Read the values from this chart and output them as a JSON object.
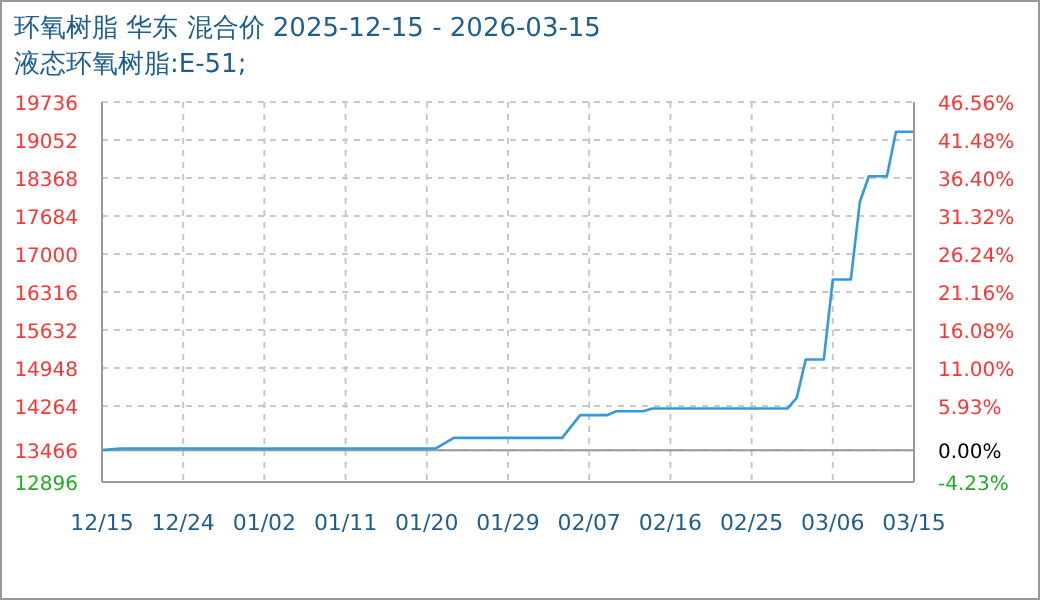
{
  "chart_data": {
    "type": "line",
    "title": "环氧树脂 华东 混合价 2025-12-15 - 2026-03-15",
    "subtitle": "液态环氧树脂:E-51;",
    "x": [
      "2025-12-15",
      "2025-12-17",
      "2026-01-21",
      "2026-01-23",
      "2026-02-04",
      "2026-02-06",
      "2026-02-09",
      "2026-02-10",
      "2026-02-13",
      "2026-02-14",
      "2026-03-01",
      "2026-03-02",
      "2026-03-03",
      "2026-03-05",
      "2026-03-06",
      "2026-03-08",
      "2026-03-09",
      "2026-03-10",
      "2026-03-12",
      "2026-03-13",
      "2026-03-15"
    ],
    "series": [
      {
        "color": "#3399dd",
        "values": [
          13470,
          13500,
          13500,
          13690,
          13690,
          14100,
          14100,
          14170,
          14170,
          14220,
          14220,
          14410,
          15100,
          15100,
          16540,
          16540,
          17940,
          18400,
          18400,
          19200,
          19200
        ]
      }
    ],
    "xlim": [
      "2025-12-15",
      "2026-03-15"
    ],
    "xticks": [
      {
        "value": "2025-12-15",
        "label": "12/15"
      },
      {
        "value": "2025-12-24",
        "label": "12/24"
      },
      {
        "value": "2026-01-02",
        "label": "01/02"
      },
      {
        "value": "2026-01-11",
        "label": "01/11"
      },
      {
        "value": "2026-01-20",
        "label": "01/20"
      },
      {
        "value": "2026-01-29",
        "label": "01/29"
      },
      {
        "value": "2026-02-07",
        "label": "02/07"
      },
      {
        "value": "2026-02-16",
        "label": "02/16"
      },
      {
        "value": "2026-02-25",
        "label": "02/25"
      },
      {
        "value": "2026-03-06",
        "label": "03/06"
      },
      {
        "value": "2026-03-15",
        "label": "03/15"
      }
    ],
    "ylim": [
      12896,
      19736
    ],
    "yticks": [
      12896,
      13466,
      14264,
      14948,
      15632,
      16316,
      17000,
      17684,
      18368,
      19052,
      19736
    ],
    "y2lim": [
      -4.23,
      46.56
    ],
    "y2ticks": [
      {
        "value": -4.23,
        "label": "-4.23%"
      },
      {
        "value": 0,
        "label": "0.00%"
      },
      {
        "value": 5.93,
        "label": "5.93%"
      },
      {
        "value": 11,
        "label": "11.00%"
      },
      {
        "value": 16.08,
        "label": "16.08%"
      },
      {
        "value": 21.16,
        "label": "21.16%"
      },
      {
        "value": 26.24,
        "label": "26.24%"
      },
      {
        "value": 31.32,
        "label": "31.32%"
      },
      {
        "value": 36.4,
        "label": "36.40%"
      },
      {
        "value": 41.48,
        "label": "41.48%"
      },
      {
        "value": 46.56,
        "label": "46.56%"
      }
    ],
    "ref_lines": [
      {
        "axis": "y2",
        "value": 0,
        "color": "#999999"
      }
    ],
    "grid": true,
    "marker": "none",
    "line_style": "solid"
  }
}
